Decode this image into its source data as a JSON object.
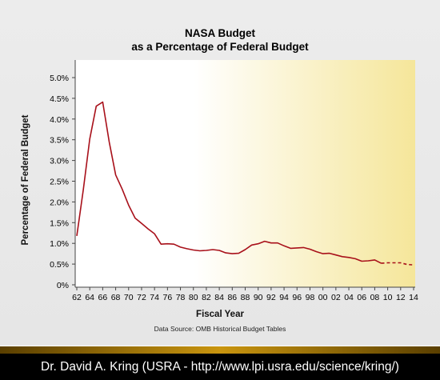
{
  "chart_data": {
    "type": "line",
    "title": "NASA Budget",
    "subtitle": "as a Percentage of Federal Budget",
    "xlabel": "Fiscal Year",
    "ylabel": "Percentage of Federal Budget",
    "source": "Data Source: OMB Historical Budget Tables",
    "x_tick_labels": [
      "62",
      "64",
      "66",
      "68",
      "70",
      "72",
      "74",
      "76",
      "78",
      "80",
      "82",
      "84",
      "86",
      "88",
      "90",
      "92",
      "94",
      "96",
      "98",
      "00",
      "02",
      "04",
      "06",
      "08",
      "10",
      "12",
      "14"
    ],
    "y_tick_labels": [
      "0%",
      "0.5%",
      "1.0%",
      "1.5%",
      "2.0%",
      "2.5%",
      "3.0%",
      "3.5%",
      "4.0%",
      "4.5%",
      "5.0%"
    ],
    "xlim": [
      1962,
      2014
    ],
    "ylim": [
      0,
      5.0
    ],
    "grid": false,
    "legend": "none",
    "series": [
      {
        "style": "solid",
        "color": "#a8101a",
        "x": [
          1962,
          1963,
          1964,
          1965,
          1966,
          1967,
          1968,
          1969,
          1970,
          1971,
          1972,
          1973,
          1974,
          1975,
          1976,
          1977,
          1978,
          1979,
          1980,
          1981,
          1982,
          1983,
          1984,
          1985,
          1986,
          1987,
          1988,
          1989,
          1990,
          1991,
          1992,
          1993,
          1994,
          1995,
          1996,
          1997,
          1998,
          1999,
          2000,
          2001,
          2002,
          2003,
          2004,
          2005,
          2006,
          2007,
          2008,
          2009
        ],
        "y": [
          1.18,
          2.29,
          3.52,
          4.31,
          4.41,
          3.45,
          2.65,
          2.31,
          1.92,
          1.61,
          1.48,
          1.35,
          1.23,
          0.98,
          0.99,
          0.98,
          0.91,
          0.87,
          0.84,
          0.82,
          0.83,
          0.85,
          0.83,
          0.77,
          0.75,
          0.76,
          0.85,
          0.96,
          0.99,
          1.05,
          1.01,
          1.01,
          0.94,
          0.88,
          0.89,
          0.9,
          0.86,
          0.8,
          0.75,
          0.76,
          0.72,
          0.68,
          0.66,
          0.63,
          0.57,
          0.58,
          0.6,
          0.52
        ]
      },
      {
        "style": "dashed",
        "color": "#a8101a",
        "x": [
          2009,
          2010,
          2011,
          2012,
          2013,
          2014
        ],
        "y": [
          0.52,
          0.53,
          0.53,
          0.53,
          0.49,
          0.48
        ]
      }
    ]
  },
  "footer": {
    "credit": "Dr. David A. Kring (USRA - http://www.lpi.usra.edu/science/kring/)"
  },
  "colors": {
    "plot_left": "#ffffff",
    "plot_right": "#f5e69a",
    "line": "#a8101a"
  }
}
